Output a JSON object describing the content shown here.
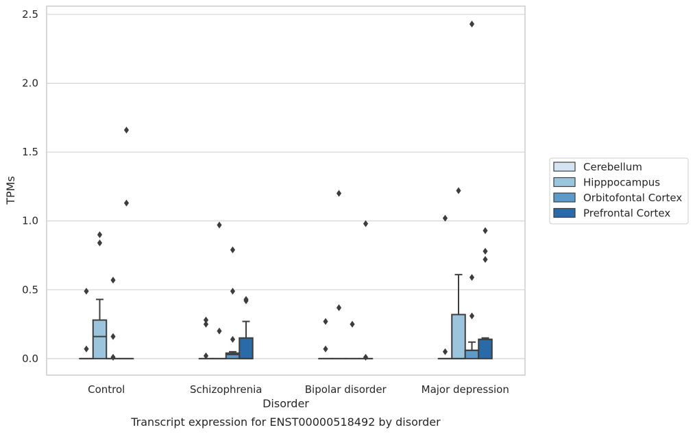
{
  "chart_data": {
    "type": "box",
    "caption": "Transcript expression for ENST00000518492 by disorder",
    "xlabel": "Disorder",
    "ylabel": "TPMs",
    "ylim": [
      -0.12,
      2.56
    ],
    "yticks": [
      0.0,
      0.5,
      1.0,
      1.5,
      2.0,
      2.5
    ],
    "ytick_labels": [
      "0.0",
      "0.5",
      "1.0",
      "1.5",
      "2.0",
      "2.5"
    ],
    "grid": true,
    "legend_position": "right",
    "categories": [
      "Control",
      "Schizophrenia",
      "Bipolar disorder",
      "Major depression"
    ],
    "series": [
      {
        "name": "Cerebellum",
        "color": "#d4e4f2",
        "boxes": [
          {
            "q1": 0,
            "median": 0,
            "q3": 0,
            "whisker_low": 0,
            "whisker_high": 0,
            "outliers": [
              0.07,
              0.49
            ]
          },
          {
            "q1": 0,
            "median": 0,
            "q3": 0,
            "whisker_low": 0,
            "whisker_high": 0,
            "outliers": [
              0.02,
              0.25,
              0.28
            ]
          },
          {
            "q1": 0,
            "median": 0,
            "q3": 0,
            "whisker_low": 0,
            "whisker_high": 0,
            "outliers": [
              0.07,
              0.27
            ]
          },
          {
            "q1": 0,
            "median": 0,
            "q3": 0,
            "whisker_low": 0,
            "whisker_high": 0,
            "outliers": [
              0.05,
              1.02
            ]
          }
        ]
      },
      {
        "name": "Hipppocampus",
        "color": "#9bc4dd",
        "boxes": [
          {
            "q1": 0,
            "median": 0.16,
            "q3": 0.28,
            "whisker_low": 0,
            "whisker_high": 0.43,
            "outliers": [
              0.84,
              0.9
            ]
          },
          {
            "q1": 0,
            "median": 0,
            "q3": 0,
            "whisker_low": 0,
            "whisker_high": 0,
            "outliers": [
              0.2,
              0.97
            ]
          },
          {
            "q1": 0,
            "median": 0,
            "q3": 0,
            "whisker_low": 0,
            "whisker_high": 0,
            "outliers": [
              0.37,
              1.2
            ]
          },
          {
            "q1": 0,
            "median": 0,
            "q3": 0.32,
            "whisker_low": 0,
            "whisker_high": 0.61,
            "outliers": [
              1.22
            ]
          }
        ]
      },
      {
        "name": "Orbitofontal Cortex",
        "color": "#5c9ac9",
        "boxes": [
          {
            "q1": 0,
            "median": 0,
            "q3": 0,
            "whisker_low": 0,
            "whisker_high": 0,
            "outliers": [
              0.01,
              0.16,
              0.57
            ]
          },
          {
            "q1": 0,
            "median": 0.03,
            "q3": 0.04,
            "whisker_low": 0,
            "whisker_high": 0.05,
            "outliers": [
              0.14,
              0.49,
              0.79
            ]
          },
          {
            "q1": 0,
            "median": 0,
            "q3": 0,
            "whisker_low": 0,
            "whisker_high": 0,
            "outliers": [
              0.25
            ]
          },
          {
            "q1": 0,
            "median": 0.06,
            "q3": 0.06,
            "whisker_low": 0,
            "whisker_high": 0.12,
            "outliers": [
              0.31,
              0.59,
              2.43
            ]
          }
        ]
      },
      {
        "name": "Prefrontal Cortex",
        "color": "#2b6aa8",
        "boxes": [
          {
            "q1": 0,
            "median": 0,
            "q3": 0,
            "whisker_low": 0,
            "whisker_high": 0,
            "outliers": [
              1.13,
              1.66
            ]
          },
          {
            "q1": 0,
            "median": 0,
            "q3": 0.15,
            "whisker_low": 0,
            "whisker_high": 0.27,
            "outliers": [
              0.42,
              0.43
            ]
          },
          {
            "q1": 0,
            "median": 0,
            "q3": 0,
            "whisker_low": 0,
            "whisker_high": 0,
            "outliers": [
              0.01,
              0.98
            ]
          },
          {
            "q1": 0,
            "median": 0.14,
            "q3": 0.14,
            "whisker_low": 0,
            "whisker_high": 0.15,
            "outliers": [
              0.72,
              0.78,
              0.93
            ]
          }
        ]
      }
    ]
  }
}
